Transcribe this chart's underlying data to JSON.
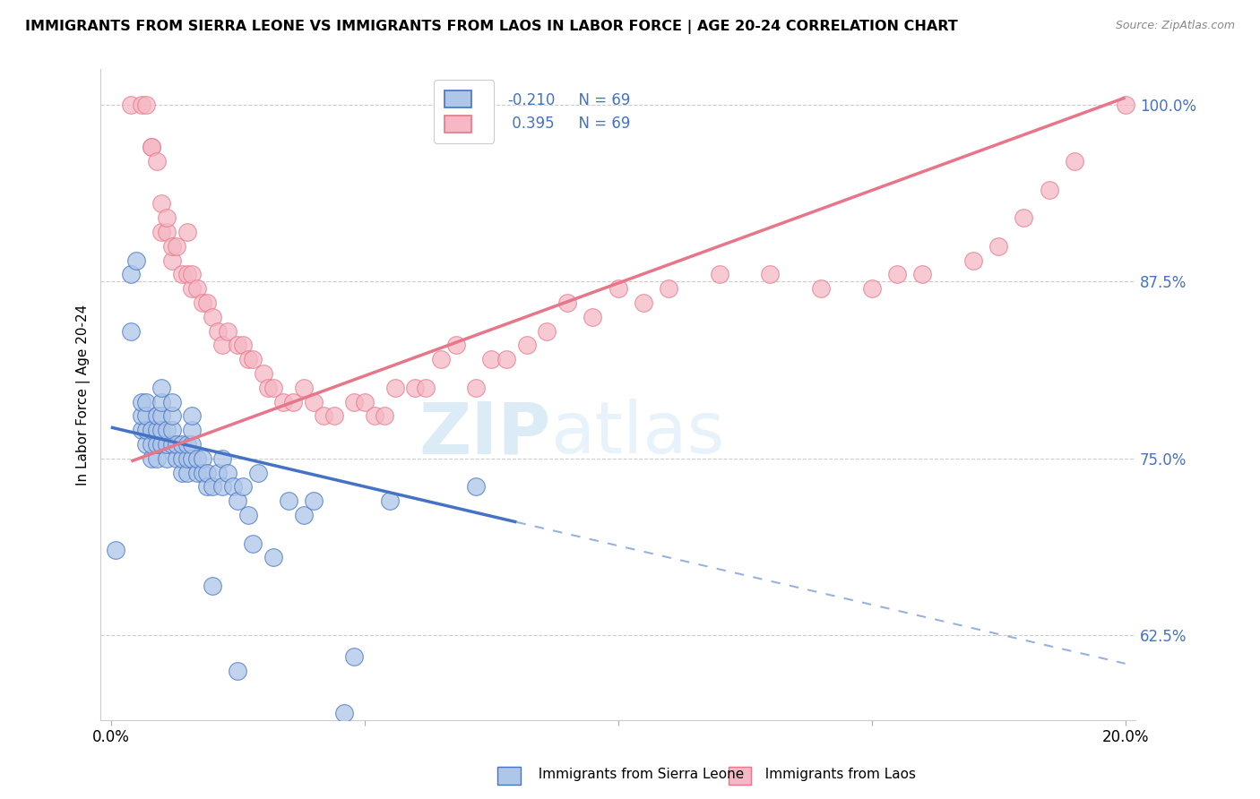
{
  "title": "IMMIGRANTS FROM SIERRA LEONE VS IMMIGRANTS FROM LAOS IN LABOR FORCE | AGE 20-24 CORRELATION CHART",
  "source": "Source: ZipAtlas.com",
  "ylabel": "In Labor Force | Age 20-24",
  "xlim": [
    -0.002,
    0.202
  ],
  "ylim": [
    0.565,
    1.025
  ],
  "yticks": [
    0.625,
    0.75,
    0.875,
    1.0
  ],
  "ytick_labels": [
    "62.5%",
    "75.0%",
    "87.5%",
    "100.0%"
  ],
  "xticks": [
    0.0,
    0.05,
    0.1,
    0.15,
    0.2
  ],
  "xtick_labels": [
    "0.0%",
    "",
    "",
    "",
    "20.0%"
  ],
  "r_sierra": "-0.210",
  "r_laos": "0.395",
  "n_sierra": 69,
  "n_laos": 69,
  "color_sierra": "#aec6e8",
  "color_laos": "#f5b8c4",
  "line_color_sierra": "#4472c4",
  "line_color_laos": "#e8768a",
  "watermark_zip": "ZIP",
  "watermark_atlas": "atlas",
  "legend_label_sierra": "R = -0.210   N = 69",
  "legend_label_laos": "R =  0.395   N = 69",
  "sierra_leone_x": [
    0.001,
    0.004,
    0.004,
    0.005,
    0.006,
    0.006,
    0.006,
    0.007,
    0.007,
    0.007,
    0.007,
    0.008,
    0.008,
    0.008,
    0.009,
    0.009,
    0.009,
    0.009,
    0.01,
    0.01,
    0.01,
    0.01,
    0.01,
    0.011,
    0.011,
    0.011,
    0.012,
    0.012,
    0.012,
    0.012,
    0.013,
    0.013,
    0.014,
    0.014,
    0.014,
    0.015,
    0.015,
    0.015,
    0.016,
    0.016,
    0.016,
    0.016,
    0.017,
    0.017,
    0.018,
    0.018,
    0.019,
    0.019,
    0.02,
    0.02,
    0.021,
    0.022,
    0.022,
    0.023,
    0.024,
    0.025,
    0.025,
    0.026,
    0.027,
    0.028,
    0.029,
    0.032,
    0.035,
    0.038,
    0.04,
    0.046,
    0.048,
    0.055,
    0.072
  ],
  "sierra_leone_y": [
    0.685,
    0.84,
    0.88,
    0.89,
    0.77,
    0.78,
    0.79,
    0.76,
    0.77,
    0.78,
    0.79,
    0.75,
    0.76,
    0.77,
    0.75,
    0.76,
    0.77,
    0.78,
    0.76,
    0.77,
    0.78,
    0.79,
    0.8,
    0.75,
    0.76,
    0.77,
    0.76,
    0.77,
    0.78,
    0.79,
    0.75,
    0.76,
    0.74,
    0.75,
    0.76,
    0.74,
    0.75,
    0.76,
    0.75,
    0.76,
    0.77,
    0.78,
    0.74,
    0.75,
    0.74,
    0.75,
    0.73,
    0.74,
    0.66,
    0.73,
    0.74,
    0.73,
    0.75,
    0.74,
    0.73,
    0.6,
    0.72,
    0.73,
    0.71,
    0.69,
    0.74,
    0.68,
    0.72,
    0.71,
    0.72,
    0.57,
    0.61,
    0.72,
    0.73
  ],
  "laos_x": [
    0.004,
    0.006,
    0.007,
    0.008,
    0.008,
    0.009,
    0.01,
    0.01,
    0.011,
    0.011,
    0.012,
    0.012,
    0.013,
    0.014,
    0.015,
    0.015,
    0.016,
    0.016,
    0.017,
    0.018,
    0.019,
    0.02,
    0.021,
    0.022,
    0.023,
    0.025,
    0.026,
    0.027,
    0.028,
    0.03,
    0.031,
    0.032,
    0.034,
    0.036,
    0.038,
    0.04,
    0.042,
    0.044,
    0.048,
    0.05,
    0.052,
    0.054,
    0.056,
    0.06,
    0.062,
    0.065,
    0.068,
    0.072,
    0.075,
    0.078,
    0.082,
    0.086,
    0.09,
    0.095,
    0.1,
    0.105,
    0.11,
    0.12,
    0.13,
    0.14,
    0.15,
    0.155,
    0.16,
    0.17,
    0.175,
    0.18,
    0.185,
    0.19,
    0.2
  ],
  "laos_y": [
    1.0,
    1.0,
    1.0,
    0.97,
    0.97,
    0.96,
    0.91,
    0.93,
    0.91,
    0.92,
    0.89,
    0.9,
    0.9,
    0.88,
    0.88,
    0.91,
    0.87,
    0.88,
    0.87,
    0.86,
    0.86,
    0.85,
    0.84,
    0.83,
    0.84,
    0.83,
    0.83,
    0.82,
    0.82,
    0.81,
    0.8,
    0.8,
    0.79,
    0.79,
    0.8,
    0.79,
    0.78,
    0.78,
    0.79,
    0.79,
    0.78,
    0.78,
    0.8,
    0.8,
    0.8,
    0.82,
    0.83,
    0.8,
    0.82,
    0.82,
    0.83,
    0.84,
    0.86,
    0.85,
    0.87,
    0.86,
    0.87,
    0.88,
    0.88,
    0.87,
    0.87,
    0.88,
    0.88,
    0.89,
    0.9,
    0.92,
    0.94,
    0.96,
    1.0
  ],
  "sl_line_x0": 0.0,
  "sl_line_y0": 0.772,
  "sl_line_x1": 0.08,
  "sl_line_y1": 0.705,
  "sl_line_dashed_x0": 0.08,
  "sl_line_dashed_y0": 0.705,
  "sl_line_dashed_x1": 0.2,
  "sl_line_dashed_y1": 0.605,
  "laos_line_x0": 0.004,
  "laos_line_y0": 0.748,
  "laos_line_x1": 0.2,
  "laos_line_y1": 1.005
}
